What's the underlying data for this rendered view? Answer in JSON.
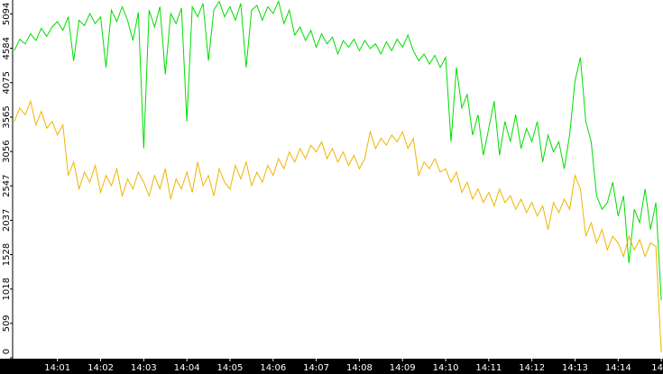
{
  "chart_data": {
    "type": "line",
    "x": [
      840,
      840.125,
      840.25,
      840.375,
      840.5,
      840.625,
      840.75,
      840.875,
      841,
      841.125,
      841.25,
      841.375,
      841.5,
      841.625,
      841.75,
      841.875,
      842,
      842.125,
      842.25,
      842.375,
      842.5,
      842.625,
      842.75,
      842.875,
      843,
      843.125,
      843.25,
      843.375,
      843.5,
      843.625,
      843.75,
      843.875,
      844,
      844.125,
      844.25,
      844.375,
      844.5,
      844.625,
      844.75,
      844.875,
      845,
      845.125,
      845.25,
      845.375,
      845.5,
      845.625,
      845.75,
      845.875,
      846,
      846.125,
      846.25,
      846.375,
      846.5,
      846.625,
      846.75,
      846.875,
      847,
      847.125,
      847.25,
      847.375,
      847.5,
      847.625,
      847.75,
      847.875,
      848,
      848.125,
      848.25,
      848.375,
      848.5,
      848.625,
      848.75,
      848.875,
      849,
      849.125,
      849.25,
      849.375,
      849.5,
      849.625,
      849.75,
      849.875,
      850,
      850.125,
      850.25,
      850.375,
      850.5,
      850.625,
      850.75,
      850.875,
      851,
      851.125,
      851.25,
      851.375,
      851.5,
      851.625,
      851.75,
      851.875,
      852,
      852.125,
      852.25,
      852.375,
      852.5,
      852.625,
      852.75,
      852.875,
      853,
      853.125,
      853.25,
      853.375,
      853.5,
      853.625,
      853.75,
      853.875,
      854,
      854.125,
      854.25,
      854.375,
      854.5,
      854.625,
      854.75,
      854.875,
      855
    ],
    "series": [
      {
        "color": "#00dd00",
        "values": [
          4550,
          4720,
          4650,
          4800,
          4700,
          4880,
          4760,
          4900,
          4980,
          4850,
          5050,
          4400,
          5000,
          4920,
          5100,
          4950,
          5050,
          4300,
          5150,
          4980,
          5200,
          5000,
          4700,
          5120,
          3100,
          5150,
          4900,
          5200,
          4200,
          5100,
          4950,
          5180,
          3500,
          5200,
          5050,
          5250,
          4400,
          5150,
          5280,
          5050,
          5200,
          5000,
          5250,
          4300,
          5150,
          5220,
          5000,
          5200,
          5100,
          5280,
          4950,
          5150,
          4780,
          4900,
          4700,
          4850,
          4600,
          4800,
          4650,
          4750,
          4500,
          4700,
          4600,
          4720,
          4550,
          4700,
          4580,
          4650,
          4500,
          4680,
          4550,
          4720,
          4600,
          4780,
          4550,
          4400,
          4500,
          4350,
          4480,
          4300,
          4450,
          3200,
          4300,
          3700,
          3900,
          3300,
          3600,
          3000,
          3400,
          3800,
          3000,
          3500,
          3200,
          3600,
          3100,
          3400,
          3200,
          3500,
          2900,
          3300,
          3050,
          3200,
          2800,
          3300,
          4100,
          4450,
          3500,
          3200,
          2400,
          2200,
          2300,
          2600,
          2100,
          2400,
          1400,
          2200,
          2000,
          2500,
          1900,
          2300,
          850
        ]
      },
      {
        "color": "#f0b400",
        "values": [
          3500,
          3700,
          3600,
          3800,
          3450,
          3650,
          3400,
          3500,
          3300,
          3450,
          2700,
          2900,
          2500,
          2750,
          2600,
          2850,
          2450,
          2700,
          2550,
          2800,
          2400,
          2650,
          2500,
          2750,
          2600,
          2400,
          2700,
          2500,
          2800,
          2350,
          2650,
          2500,
          2750,
          2450,
          2900,
          2550,
          2700,
          2400,
          2800,
          2600,
          2500,
          2850,
          2650,
          2900,
          2550,
          2750,
          2600,
          2850,
          2700,
          2950,
          2800,
          3050,
          2900,
          3100,
          2950,
          3150,
          3050,
          3200,
          2950,
          3100,
          2900,
          3050,
          2850,
          3000,
          2800,
          2950,
          3350,
          3100,
          3250,
          3150,
          3300,
          3200,
          3350,
          3100,
          3250,
          2700,
          2900,
          2800,
          2950,
          2750,
          2800,
          2600,
          2750,
          2450,
          2600,
          2350,
          2500,
          2300,
          2450,
          2250,
          2500,
          2300,
          2400,
          2200,
          2350,
          2150,
          2300,
          2100,
          2250,
          1900,
          2300,
          2150,
          2350,
          2200,
          2700,
          2500,
          1800,
          2000,
          1700,
          1900,
          1600,
          1800,
          1700,
          1500,
          1800,
          1600,
          1750,
          1500,
          1700,
          1650,
          80
        ]
      }
    ],
    "xlim": [
      839.96,
      855.04
    ],
    "ylim": [
      0,
      5300
    ],
    "yticks": [
      0,
      509,
      1018,
      1528,
      2037,
      2547,
      3056,
      3565,
      4075,
      4584,
      5094
    ],
    "xticks": [
      {
        "value": 841,
        "label": "14:01"
      },
      {
        "value": 842,
        "label": "14:02"
      },
      {
        "value": 843,
        "label": "14:03"
      },
      {
        "value": 844,
        "label": "14:04"
      },
      {
        "value": 845,
        "label": "14:05"
      },
      {
        "value": 846,
        "label": "14:06"
      },
      {
        "value": 847,
        "label": "14:07"
      },
      {
        "value": 848,
        "label": "14:08"
      },
      {
        "value": 849,
        "label": "14:09"
      },
      {
        "value": 850,
        "label": "14:10"
      },
      {
        "value": 851,
        "label": "14:11"
      },
      {
        "value": 852,
        "label": "14:12"
      },
      {
        "value": 853,
        "label": "14:13"
      },
      {
        "value": 854,
        "label": "14:14"
      },
      {
        "value": 855,
        "label": "14"
      }
    ]
  }
}
